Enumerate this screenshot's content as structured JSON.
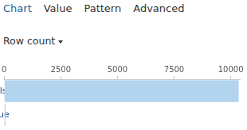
{
  "header": {
    "tabs": [
      "Chart",
      "Value",
      "Pattern",
      "Advanced"
    ],
    "active_tab": "Chart",
    "dropdown": "Row count"
  },
  "chart_data": {
    "type": "bar",
    "orientation": "horizontal",
    "categories": [
      "false",
      "true"
    ],
    "values": [
      10350,
      60
    ],
    "color": "#b3d4ee",
    "xlim": [
      0,
      10400
    ],
    "xticks": [
      0,
      2500,
      5000,
      7500,
      10000
    ],
    "grid": false
  }
}
